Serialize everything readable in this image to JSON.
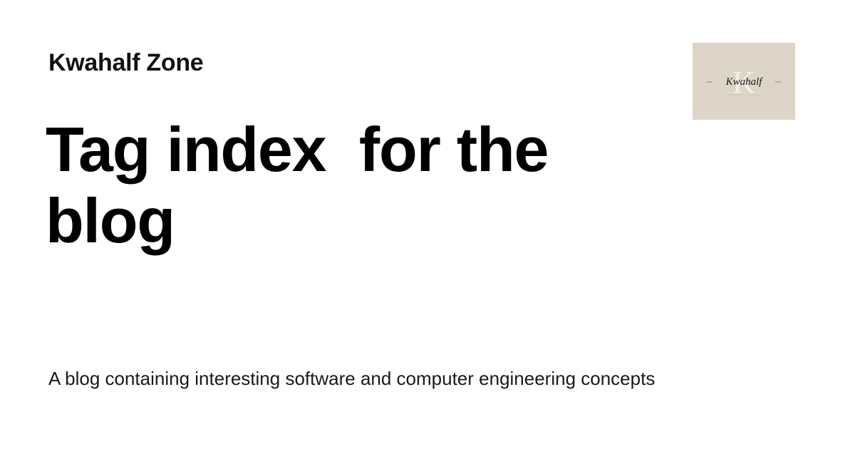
{
  "site": {
    "name": "Kwahalf Zone"
  },
  "page": {
    "title": "Tag index  for the blog",
    "description": "A blog containing interesting software and computer engineering concepts"
  },
  "logo": {
    "text": "Kwahalf",
    "monogram": "K",
    "background_color": "#ddd5c7"
  },
  "colors": {
    "background": "#ffffff",
    "text": "#000000"
  }
}
